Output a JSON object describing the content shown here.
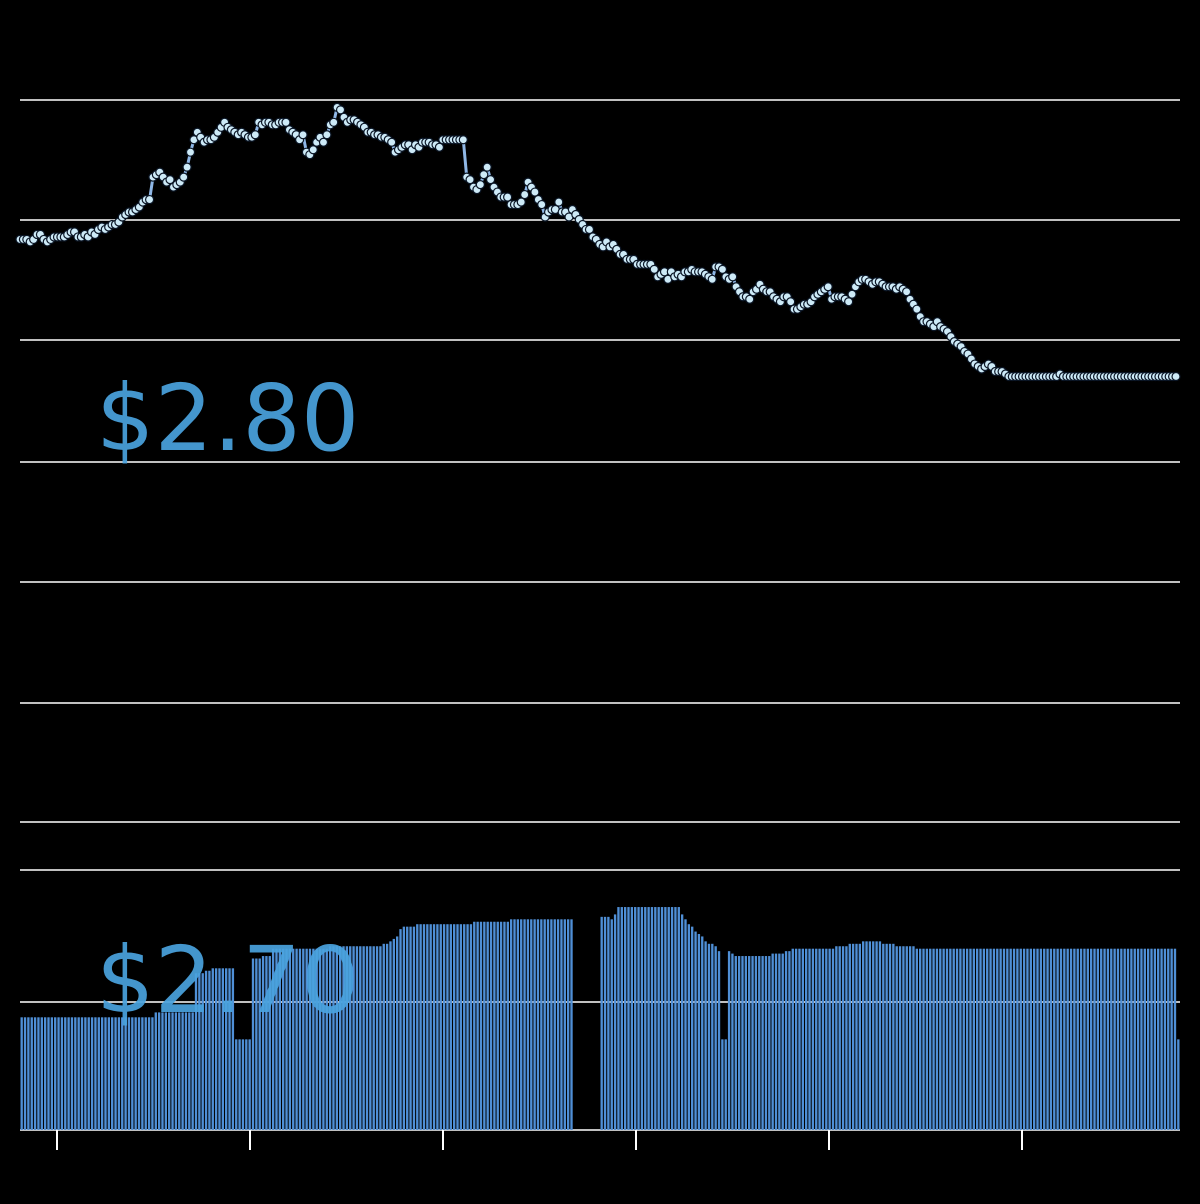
{
  "chart_data": {
    "type": "line",
    "title": "",
    "xlabel": "",
    "ylabel": "",
    "ylim": [
      2.596,
      2.913
    ],
    "y_labels": [
      {
        "value": 2.8,
        "text": "$2.80"
      },
      {
        "value": 2.7,
        "text": "$2.70"
      }
    ],
    "grid": true,
    "x_ticks": 6,
    "colors": {
      "line": "#8fb7e6",
      "marker_fill": "#cdeaf7",
      "marker_stroke": "#0b1626",
      "bar": "#4f8fd6",
      "grid": "#ffffff",
      "label": "#4aa3df"
    },
    "series": [
      {
        "values": [
          2.841,
          2.841,
          2.841,
          2.84,
          2.841,
          2.843,
          2.843,
          2.841,
          2.84,
          2.841,
          2.842,
          2.842,
          2.842,
          2.842,
          2.843,
          2.844,
          2.844,
          2.842,
          2.842,
          2.843,
          2.842,
          2.844,
          2.843,
          2.845,
          2.846,
          2.845,
          2.846,
          2.847,
          2.847,
          2.848,
          2.85,
          2.851,
          2.852,
          2.852,
          2.853,
          2.854,
          2.856,
          2.857,
          2.857,
          2.866,
          2.867,
          2.868,
          2.866,
          2.864,
          2.865,
          2.862,
          2.863,
          2.864,
          2.866,
          2.87,
          2.876,
          2.881,
          2.884,
          2.882,
          2.88,
          2.881,
          2.881,
          2.882,
          2.884,
          2.886,
          2.888,
          2.886,
          2.885,
          2.884,
          2.883,
          2.884,
          2.883,
          2.882,
          2.882,
          2.883,
          2.888,
          2.887,
          2.888,
          2.888,
          2.887,
          2.887,
          2.888,
          2.888,
          2.888,
          2.885,
          2.884,
          2.883,
          2.881,
          2.883,
          2.876,
          2.875,
          2.877,
          2.88,
          2.882,
          2.88,
          2.883,
          2.887,
          2.888,
          2.894,
          2.893,
          2.89,
          2.888,
          2.889,
          2.889,
          2.888,
          2.887,
          2.886,
          2.884,
          2.884,
          2.883,
          2.883,
          2.882,
          2.882,
          2.881,
          2.88,
          2.876,
          2.877,
          2.878,
          2.879,
          2.879,
          2.877,
          2.879,
          2.878,
          2.88,
          2.88,
          2.88,
          2.879,
          2.879,
          2.878,
          2.881,
          2.881,
          2.881,
          2.881,
          2.881,
          2.881,
          2.881,
          2.866,
          2.865,
          2.862,
          2.861,
          2.863,
          2.867,
          2.87,
          2.865,
          2.862,
          2.86,
          2.858,
          2.858,
          2.858,
          2.855,
          2.855,
          2.855,
          2.856,
          2.859,
          2.864,
          2.862,
          2.86,
          2.857,
          2.855,
          2.85,
          2.852,
          2.853,
          2.853,
          2.856,
          2.852,
          2.852,
          2.85,
          2.853,
          2.851,
          2.849,
          2.847,
          2.845,
          2.845,
          2.842,
          2.841,
          2.839,
          2.838,
          2.84,
          2.838,
          2.839,
          2.837,
          2.835,
          2.835,
          2.833,
          2.833,
          2.833,
          2.831,
          2.831,
          2.831,
          2.831,
          2.831,
          2.829,
          2.826,
          2.827,
          2.828,
          2.825,
          2.828,
          2.826,
          2.827,
          2.826,
          2.828,
          2.828,
          2.829,
          2.828,
          2.828,
          2.828,
          2.827,
          2.826,
          2.825,
          2.83,
          2.83,
          2.829,
          2.826,
          2.825,
          2.826,
          2.822,
          2.82,
          2.818,
          2.818,
          2.817,
          2.82,
          2.821,
          2.823,
          2.821,
          2.82,
          2.82,
          2.818,
          2.817,
          2.816,
          2.818,
          2.818,
          2.816,
          2.813,
          2.813,
          2.814,
          2.815,
          2.815,
          2.816,
          2.818,
          2.819,
          2.82,
          2.821,
          2.822,
          2.817,
          2.818,
          2.818,
          2.818,
          2.817,
          2.816,
          2.819,
          2.822,
          2.824,
          2.825,
          2.825,
          2.824,
          2.823,
          2.824,
          2.824,
          2.823,
          2.822,
          2.822,
          2.822,
          2.821,
          2.822,
          2.821,
          2.82,
          2.817,
          2.815,
          2.813,
          2.81,
          2.808,
          2.808,
          2.807,
          2.806,
          2.808,
          2.806,
          2.805,
          2.804,
          2.802,
          2.8,
          2.799,
          2.798,
          2.796,
          2.795,
          2.793,
          2.791,
          2.79,
          2.789,
          2.79,
          2.791,
          2.79,
          2.788,
          2.788,
          2.788,
          2.787,
          2.786,
          2.786,
          2.786,
          2.786,
          2.786,
          2.786,
          2.786,
          2.786,
          2.786,
          2.786,
          2.786,
          2.786,
          2.786,
          2.786,
          2.786,
          2.787,
          2.786,
          2.786,
          2.786,
          2.786,
          2.786,
          2.786,
          2.786,
          2.786,
          2.786,
          2.786,
          2.786,
          2.786,
          2.786,
          2.786,
          2.786,
          2.786,
          2.786,
          2.786,
          2.786,
          2.786,
          2.786,
          2.786,
          2.786,
          2.786,
          2.786,
          2.786,
          2.786,
          2.786,
          2.786,
          2.786,
          2.786,
          2.786,
          2.786,
          2.786
        ]
      }
    ],
    "volume": {
      "ylim": [
        0,
        1
      ],
      "values": [
        0.46,
        0.46,
        0.46,
        0.46,
        0.46,
        0.46,
        0.46,
        0.46,
        0.46,
        0.46,
        0.46,
        0.46,
        0.46,
        0.46,
        0.46,
        0.46,
        0.46,
        0.46,
        0.46,
        0.46,
        0.46,
        0.46,
        0.46,
        0.46,
        0.46,
        0.46,
        0.46,
        0.46,
        0.46,
        0.46,
        0.46,
        0.46,
        0.46,
        0.46,
        0.46,
        0.46,
        0.46,
        0.46,
        0.46,
        0.46,
        0.48,
        0.48,
        0.48,
        0.48,
        0.48,
        0.48,
        0.48,
        0.48,
        0.48,
        0.48,
        0.48,
        0.48,
        0.64,
        0.64,
        0.64,
        0.65,
        0.65,
        0.66,
        0.66,
        0.66,
        0.66,
        0.66,
        0.66,
        0.66,
        0.37,
        0.37,
        0.37,
        0.37,
        0.37,
        0.7,
        0.7,
        0.7,
        0.71,
        0.71,
        0.71,
        0.74,
        0.74,
        0.74,
        0.74,
        0.74,
        0.74,
        0.74,
        0.74,
        0.74,
        0.74,
        0.74,
        0.74,
        0.74,
        0.74,
        0.74,
        0.74,
        0.74,
        0.75,
        0.75,
        0.75,
        0.75,
        0.75,
        0.75,
        0.75,
        0.75,
        0.75,
        0.75,
        0.75,
        0.75,
        0.75,
        0.75,
        0.75,
        0.75,
        0.76,
        0.76,
        0.77,
        0.78,
        0.79,
        0.82,
        0.83,
        0.83,
        0.83,
        0.83,
        0.84,
        0.84,
        0.84,
        0.84,
        0.84,
        0.84,
        0.84,
        0.84,
        0.84,
        0.84,
        0.84,
        0.84,
        0.84,
        0.84,
        0.84,
        0.84,
        0.84,
        0.85,
        0.85,
        0.85,
        0.85,
        0.85,
        0.85,
        0.85,
        0.85,
        0.85,
        0.85,
        0.85,
        0.86,
        0.86,
        0.86,
        0.86,
        0.86,
        0.86,
        0.86,
        0.86,
        0.86,
        0.86,
        0.86,
        0.86,
        0.86,
        0.86,
        0.86,
        0.86,
        0.86,
        0.86,
        0.86,
        0.0,
        0.0,
        0.0,
        0.0,
        0.0,
        0.0,
        0.0,
        0.0,
        0.87,
        0.87,
        0.87,
        0.86,
        0.88,
        0.91,
        0.91,
        0.91,
        0.91,
        0.91,
        0.91,
        0.91,
        0.91,
        0.91,
        0.91,
        0.91,
        0.91,
        0.91,
        0.91,
        0.91,
        0.91,
        0.91,
        0.91,
        0.91,
        0.88,
        0.86,
        0.84,
        0.83,
        0.81,
        0.8,
        0.79,
        0.77,
        0.76,
        0.76,
        0.75,
        0.73,
        0.37,
        0.37,
        0.73,
        0.72,
        0.71,
        0.71,
        0.71,
        0.71,
        0.71,
        0.71,
        0.71,
        0.71,
        0.71,
        0.71,
        0.71,
        0.72,
        0.72,
        0.72,
        0.72,
        0.73,
        0.73,
        0.74,
        0.74,
        0.74,
        0.74,
        0.74,
        0.74,
        0.74,
        0.74,
        0.74,
        0.74,
        0.74,
        0.74,
        0.74,
        0.75,
        0.75,
        0.75,
        0.75,
        0.76,
        0.76,
        0.76,
        0.76,
        0.77,
        0.77,
        0.77,
        0.77,
        0.77,
        0.77,
        0.76,
        0.76,
        0.76,
        0.76,
        0.75,
        0.75,
        0.75,
        0.75,
        0.75,
        0.75,
        0.74,
        0.74,
        0.74,
        0.74,
        0.74,
        0.74,
        0.74,
        0.74,
        0.74,
        0.74,
        0.74,
        0.74,
        0.74,
        0.74,
        0.74,
        0.74,
        0.74,
        0.74,
        0.74,
        0.74,
        0.74,
        0.74,
        0.74,
        0.74,
        0.74,
        0.74,
        0.74,
        0.74,
        0.74,
        0.74,
        0.74,
        0.74,
        0.74,
        0.74,
        0.74,
        0.74,
        0.74,
        0.74,
        0.74,
        0.74,
        0.74,
        0.74,
        0.74,
        0.74,
        0.74,
        0.74,
        0.74,
        0.74,
        0.74,
        0.74,
        0.74,
        0.74,
        0.74,
        0.74,
        0.74,
        0.74,
        0.74,
        0.74,
        0.74,
        0.74,
        0.74,
        0.74,
        0.74,
        0.74,
        0.74,
        0.74,
        0.74,
        0.74,
        0.74,
        0.74,
        0.74,
        0.74,
        0.74,
        0.74,
        0.74,
        0.74,
        0.74,
        0.74,
        0.37
      ]
    }
  }
}
